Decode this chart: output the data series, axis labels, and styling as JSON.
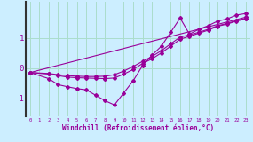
{
  "xlabel": "Windchill (Refroidissement éolien,°C)",
  "background_color": "#cceeff",
  "grid_color": "#aaddcc",
  "line_color": "#990099",
  "x_ticks": [
    0,
    1,
    2,
    3,
    4,
    5,
    6,
    7,
    8,
    9,
    10,
    11,
    12,
    13,
    14,
    15,
    16,
    17,
    18,
    19,
    20,
    21,
    22,
    23
  ],
  "y_ticks": [
    -1,
    0,
    1
  ],
  "xlim": [
    -0.5,
    23.5
  ],
  "ylim": [
    -1.6,
    2.2
  ],
  "lines": [
    {
      "x": [
        0,
        2,
        3,
        4,
        5,
        6,
        7,
        8,
        9,
        10,
        11,
        12,
        13,
        14,
        15,
        16,
        17,
        18,
        19,
        20,
        21,
        22,
        23
      ],
      "y": [
        -0.15,
        -0.2,
        -0.25,
        -0.3,
        -0.32,
        -0.33,
        -0.34,
        -0.35,
        -0.33,
        -0.2,
        -0.05,
        0.15,
        0.3,
        0.5,
        0.72,
        0.95,
        1.05,
        1.15,
        1.25,
        1.38,
        1.45,
        1.55,
        1.62
      ]
    },
    {
      "x": [
        0,
        2,
        3,
        4,
        5,
        6,
        7,
        8,
        9,
        10,
        11,
        12,
        13,
        14,
        15,
        16,
        17,
        18,
        19,
        20,
        21,
        22,
        23
      ],
      "y": [
        -0.15,
        -0.18,
        -0.22,
        -0.25,
        -0.27,
        -0.28,
        -0.28,
        -0.27,
        -0.22,
        -0.1,
        0.05,
        0.22,
        0.38,
        0.57,
        0.8,
        1.02,
        1.1,
        1.18,
        1.28,
        1.4,
        1.47,
        1.57,
        1.64
      ]
    },
    {
      "x": [
        0,
        23
      ],
      "y": [
        -0.15,
        1.68
      ]
    },
    {
      "x": [
        0,
        2,
        3,
        4,
        5,
        6,
        7,
        8,
        9,
        10,
        11,
        12,
        13,
        14,
        15,
        16,
        17,
        18,
        19,
        20,
        21,
        22,
        23
      ],
      "y": [
        -0.15,
        -0.35,
        -0.55,
        -0.62,
        -0.68,
        -0.72,
        -0.9,
        -1.08,
        -1.22,
        -0.82,
        -0.42,
        0.08,
        0.42,
        0.72,
        1.18,
        1.65,
        1.12,
        1.28,
        1.4,
        1.55,
        1.62,
        1.75,
        1.8
      ]
    }
  ]
}
